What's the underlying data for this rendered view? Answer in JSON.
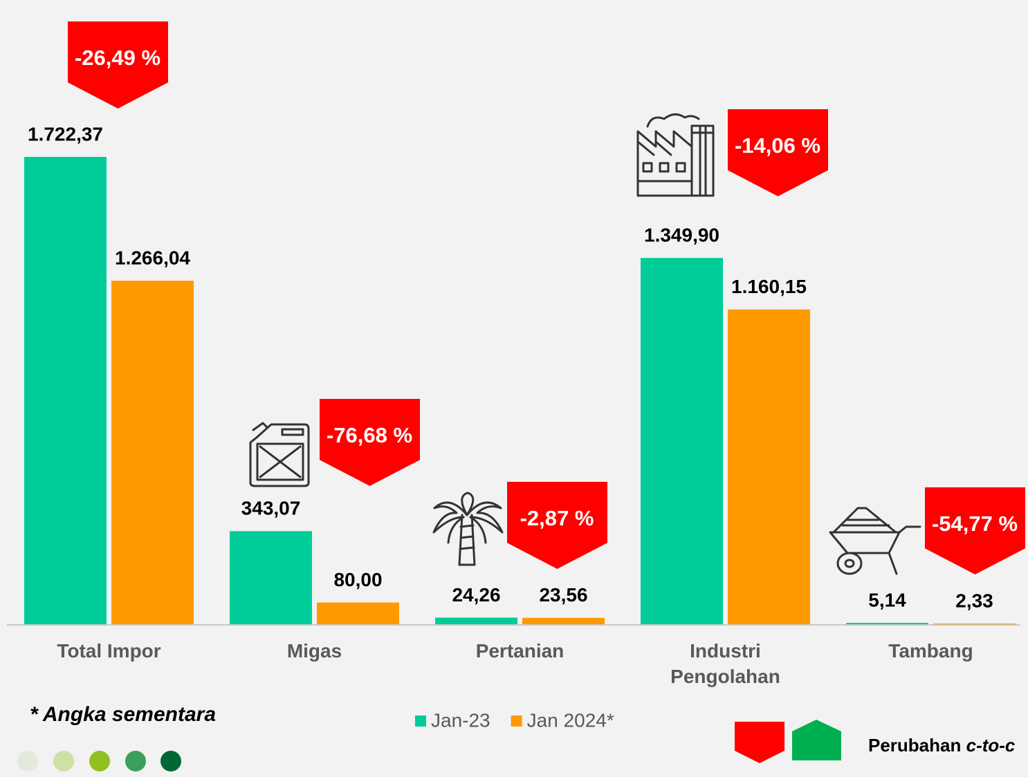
{
  "chart_data": {
    "type": "bar",
    "categories": [
      "Total Impor",
      "Migas",
      "Pertanian",
      "Industri Pengolahan",
      "Tambang"
    ],
    "series": [
      {
        "name": "Jan-23",
        "color": "#00cc99",
        "values": [
          1722.37,
          343.07,
          24.26,
          1349.9,
          5.14
        ],
        "value_labels": [
          "1.722,37",
          "343,07",
          "24,26",
          "1.349,90",
          "5,14"
        ]
      },
      {
        "name": "Jan 2024*",
        "color": "#ff9900",
        "values": [
          1266.04,
          80.0,
          23.56,
          1160.15,
          2.33
        ],
        "value_labels": [
          "1.266,04",
          "80,00",
          "23,56",
          "1.160,15",
          "2,33"
        ]
      }
    ],
    "changes": {
      "color": "#ff0000",
      "values": [
        -26.49,
        -76.68,
        -2.87,
        -14.06,
        -54.77
      ],
      "value_labels": [
        "-26,49 %",
        "-76,68 %",
        "-2,87 %",
        "-14,06 %",
        "-54,77 %"
      ]
    },
    "ylim": [
      0,
      2000
    ],
    "footnote": "* Angka sementara",
    "change_legend": {
      "text": "Perubahan",
      "emphasis": "c-to-c",
      "down_color": "#ff0000",
      "up_color": "#00b050"
    }
  }
}
